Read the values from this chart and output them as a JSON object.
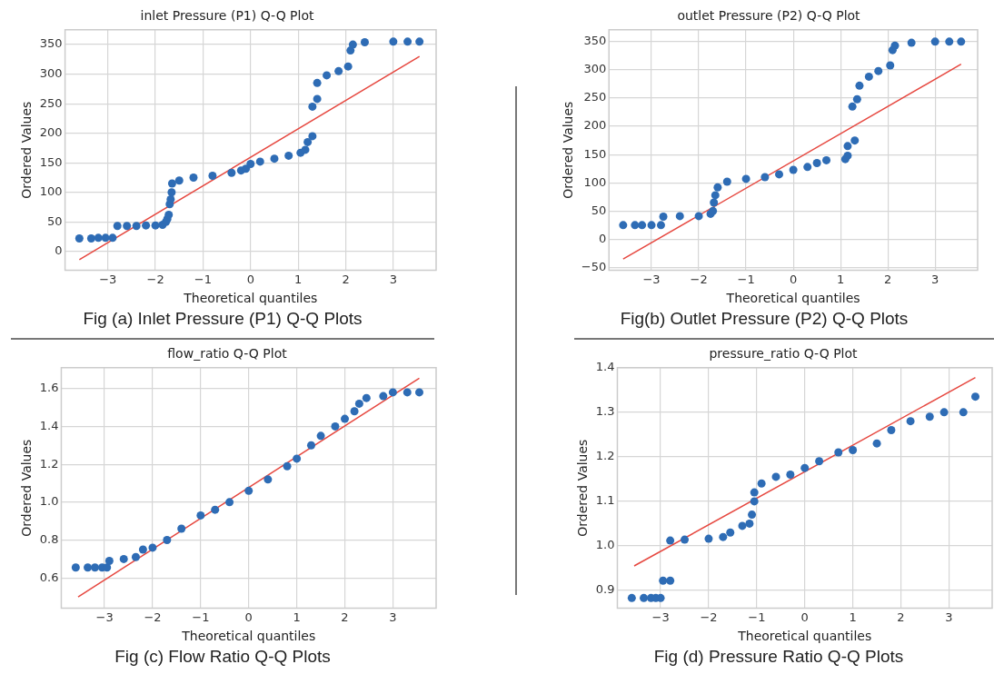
{
  "chart_data": [
    {
      "type": "scatter",
      "title": "inlet Pressure (P1) Q-Q Plot",
      "xlabel": "Theoretical quantiles",
      "ylabel": "Ordered Values",
      "xlim": [
        -3.9,
        3.9
      ],
      "ylim": [
        -32,
        375
      ],
      "xticks": [
        -3,
        -2,
        -1,
        0,
        1,
        2,
        3
      ],
      "yticks": [
        0,
        50,
        100,
        150,
        200,
        250,
        300,
        350
      ],
      "grid": true,
      "marker": "circle",
      "annotations": [
        "Fig (a) Inlet Pressure (P1) Q-Q Plots"
      ],
      "series": [
        {
          "type": "scatter",
          "color": "#2e6cb5",
          "x": [
            -3.6,
            -3.35,
            -3.2,
            -3.05,
            -2.9,
            -2.8,
            -2.6,
            -2.4,
            -2.2,
            -2.0,
            -1.85,
            -1.78,
            -1.75,
            -1.72,
            -1.7,
            -1.68,
            -1.66,
            -1.65,
            -1.5,
            -1.2,
            -0.8,
            -0.4,
            -0.2,
            -0.1,
            0,
            0.2,
            0.5,
            0.8,
            1.05,
            1.15,
            1.2,
            1.3,
            1.3,
            1.4,
            1.4,
            1.6,
            1.85,
            2.05,
            2.1,
            2.15,
            2.4,
            3.0,
            3.3,
            3.55
          ],
          "values": [
            22,
            22,
            23,
            23,
            23,
            43,
            43,
            43,
            44,
            44,
            45,
            50,
            55,
            62,
            80,
            88,
            100,
            115,
            120,
            125,
            128,
            133,
            137,
            140,
            148,
            152,
            157,
            162,
            167,
            172,
            185,
            195,
            245,
            258,
            285,
            298,
            305,
            313,
            340,
            350,
            354,
            355,
            355,
            355
          ]
        },
        {
          "type": "line",
          "color": "#e6473f",
          "marker": "none",
          "x": [
            -3.6,
            3.55
          ],
          "values": [
            -14,
            330
          ]
        }
      ]
    },
    {
      "type": "scatter",
      "title": "outlet Pressure (P2) Q-Q Plot",
      "xlabel": "Theoretical quantiles",
      "ylabel": "Ordered Values",
      "xlim": [
        -3.9,
        3.9
      ],
      "ylim": [
        -55,
        371
      ],
      "xticks": [
        -3,
        -2,
        -1,
        0,
        1,
        2,
        3
      ],
      "yticks": [
        -50,
        0,
        50,
        100,
        150,
        200,
        250,
        300,
        350
      ],
      "grid": true,
      "marker": "circle",
      "annotations": [
        "Fig(b) Outlet Pressure (P2) Q-Q Plots"
      ],
      "series": [
        {
          "type": "scatter",
          "color": "#2e6cb5",
          "x": [
            -3.6,
            -3.35,
            -3.2,
            -3.0,
            -2.8,
            -2.75,
            -2.4,
            -2.0,
            -1.75,
            -1.7,
            -1.68,
            -1.65,
            -1.6,
            -1.4,
            -1.0,
            -0.6,
            -0.3,
            0,
            0.3,
            0.5,
            0.7,
            1.1,
            1.15,
            1.15,
            1.3,
            1.25,
            1.35,
            1.4,
            1.6,
            1.8,
            2.05,
            2.1,
            2.15,
            2.5,
            3.0,
            3.3,
            3.55
          ],
          "values": [
            25,
            25,
            25,
            25,
            25,
            40,
            41,
            41,
            45,
            50,
            65,
            78,
            92,
            102,
            107,
            110,
            115,
            123,
            128,
            135,
            140,
            142,
            148,
            165,
            175,
            235,
            248,
            272,
            288,
            298,
            308,
            335,
            343,
            348,
            350,
            350,
            350
          ]
        },
        {
          "type": "line",
          "color": "#e6473f",
          "marker": "none",
          "x": [
            -3.6,
            3.55
          ],
          "values": [
            -35,
            310
          ]
        }
      ]
    },
    {
      "type": "scatter",
      "title": "flow_ratio Q-Q Plot",
      "xlabel": "Theoretical quantiles",
      "ylabel": "Ordered Values",
      "xlim": [
        -3.9,
        3.9
      ],
      "ylim": [
        0.44,
        1.71
      ],
      "xticks": [
        -3,
        -2,
        -1,
        0,
        1,
        2,
        3
      ],
      "yticks": [
        0.6,
        0.8,
        {
          "value": 1,
          "label": "1.0"
        },
        1.2,
        1.4,
        1.6
      ],
      "grid": true,
      "marker": "circle",
      "annotations": [
        "Fig (c) Flow Ratio Q-Q Plots"
      ],
      "series": [
        {
          "type": "scatter",
          "color": "#2e6cb5",
          "x": [
            -3.6,
            -3.35,
            -3.2,
            -3.05,
            -2.95,
            -2.9,
            -2.6,
            -2.35,
            -2.2,
            -2.0,
            -1.7,
            -1.4,
            -1.0,
            -0.7,
            -0.4,
            0,
            0.4,
            0.8,
            1.0,
            1.3,
            1.5,
            1.8,
            2.0,
            2.2,
            2.3,
            2.45,
            2.8,
            3.0,
            3.3,
            3.55
          ],
          "values": [
            0.655,
            0.655,
            0.655,
            0.655,
            0.655,
            0.69,
            0.7,
            0.71,
            0.75,
            0.76,
            0.8,
            0.86,
            0.93,
            0.96,
            1.0,
            1.06,
            1.12,
            1.19,
            1.23,
            1.3,
            1.35,
            1.4,
            1.44,
            1.48,
            1.52,
            1.55,
            1.56,
            1.58,
            1.58,
            1.58
          ]
        },
        {
          "type": "line",
          "color": "#e6473f",
          "marker": "none",
          "x": [
            -3.55,
            3.55
          ],
          "values": [
            0.5,
            1.655
          ]
        }
      ]
    },
    {
      "type": "scatter",
      "title": "pressure_ratio Q-Q Plot",
      "xlabel": "Theoretical quantiles",
      "ylabel": "Ordered Values",
      "xlim": [
        -3.9,
        3.9
      ],
      "ylim": [
        0.86,
        1.4
      ],
      "xticks": [
        -3,
        -2,
        -1,
        0,
        1,
        2,
        3
      ],
      "yticks": [
        0.9,
        {
          "value": 1,
          "label": "1.0"
        },
        1.1,
        1.2,
        1.3,
        1.4
      ],
      "grid": true,
      "marker": "circle",
      "annotations": [
        "Fig (d) Pressure Ratio Q-Q Plots"
      ],
      "series": [
        {
          "type": "scatter",
          "color": "#2e6cb5",
          "x": [
            -3.6,
            -3.35,
            -3.2,
            -3.1,
            -3.0,
            -2.95,
            -2.8,
            -2.8,
            -2.5,
            -2.0,
            -1.7,
            -1.55,
            -1.3,
            -1.15,
            -1.1,
            -1.05,
            -1.05,
            -0.9,
            -0.6,
            -0.3,
            0,
            0.3,
            0.7,
            1.0,
            1.5,
            1.8,
            2.2,
            2.6,
            2.9,
            3.3,
            3.55
          ],
          "values": [
            0.883,
            0.883,
            0.883,
            0.883,
            0.883,
            0.922,
            0.922,
            1.012,
            1.014,
            1.016,
            1.02,
            1.03,
            1.045,
            1.05,
            1.07,
            1.1,
            1.12,
            1.14,
            1.155,
            1.16,
            1.175,
            1.19,
            1.21,
            1.215,
            1.23,
            1.26,
            1.28,
            1.29,
            1.3,
            1.3,
            1.335
          ]
        },
        {
          "type": "line",
          "color": "#e6473f",
          "marker": "none",
          "x": [
            -3.55,
            3.55
          ],
          "values": [
            0.955,
            1.378
          ]
        }
      ]
    }
  ]
}
